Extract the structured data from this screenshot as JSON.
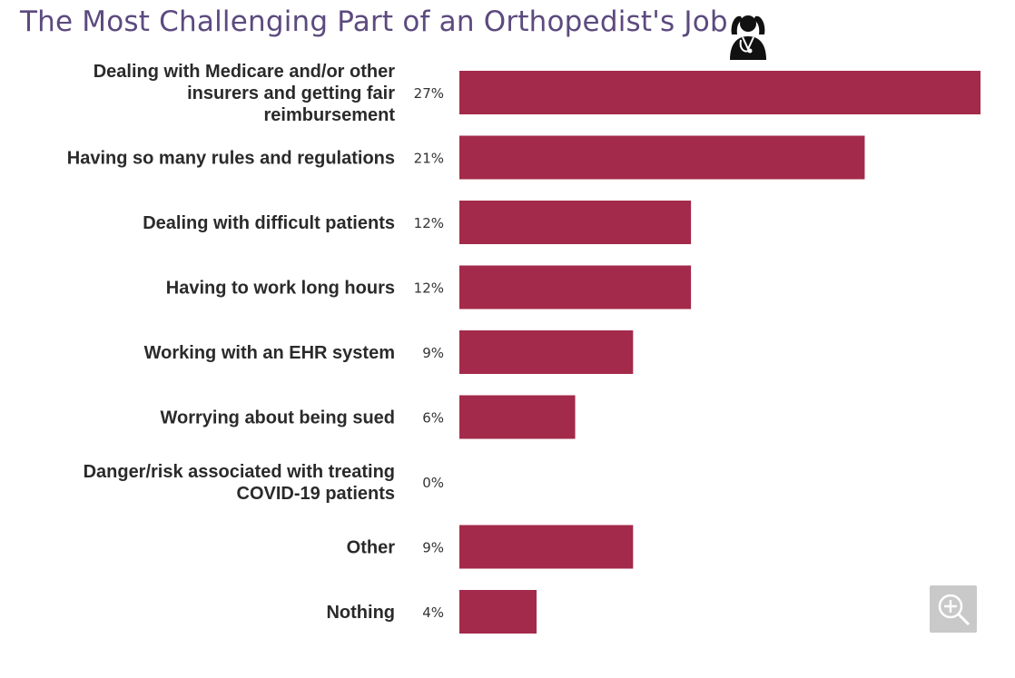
{
  "title": "The Most Challenging Part of an Orthopedist's Job",
  "icons": {
    "header_icon": "doctor-stress-icon",
    "zoom_icon": "zoom-in-icon"
  },
  "chart_data": {
    "type": "bar",
    "orientation": "horizontal",
    "title": "The Most Challenging Part of an Orthopedist's Job",
    "categories": [
      "Dealing with Medicare and/or other insurers and getting fair reimbursement",
      "Having so many rules and regulations",
      "Dealing with difficult patients",
      "Having to work long hours",
      "Working with an EHR system",
      "Worrying about being sued",
      "Danger/risk associated with treating COVID-19 patients",
      "Other",
      "Nothing"
    ],
    "category_lines": [
      [
        "Dealing with Medicare and/or other",
        "insurers and getting fair",
        "reimbursement"
      ],
      [
        "Having so many rules and regulations"
      ],
      [
        "Dealing with difficult patients"
      ],
      [
        "Having to work long hours"
      ],
      [
        "Working with an EHR system"
      ],
      [
        "Worrying about being sued"
      ],
      [
        "Danger/risk associated with treating",
        "COVID-19 patients"
      ],
      [
        "Other"
      ],
      [
        "Nothing"
      ]
    ],
    "values": [
      27,
      21,
      12,
      12,
      9,
      6,
      0,
      9,
      4
    ],
    "value_labels": [
      "27%",
      "21%",
      "12%",
      "12%",
      "9%",
      "6%",
      "0%",
      "9%",
      "4%"
    ],
    "unit": "%",
    "xlim": [
      0,
      27
    ],
    "grid": false,
    "legend": "none",
    "bar_color": "#a32a4a"
  }
}
